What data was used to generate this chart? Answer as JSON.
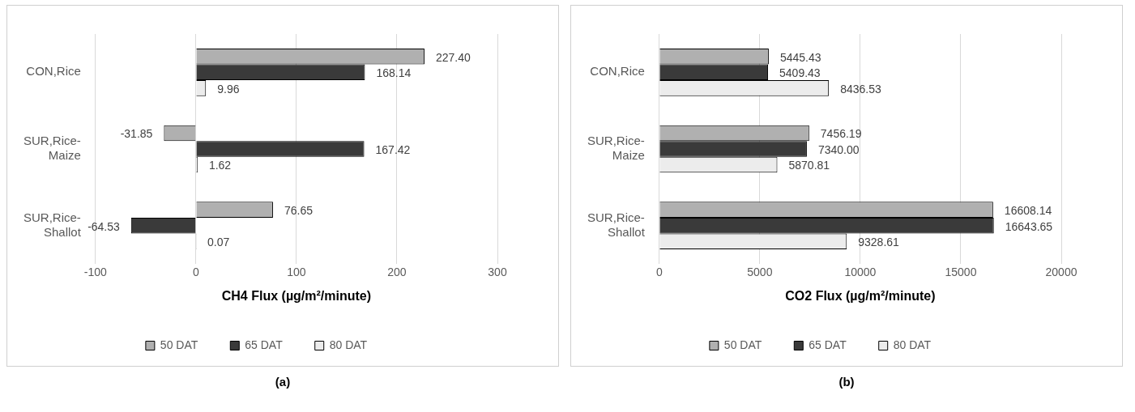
{
  "chart_data": [
    {
      "type": "bar",
      "orientation": "horizontal",
      "categories": [
        "CON,Rice",
        "SUR,Rice-Maize",
        "SUR,Rice-Shallot"
      ],
      "xlabel": "CH4 Flux (µg/m²/minute)",
      "xlim": [
        -100,
        300
      ],
      "xticks": [
        -100,
        0,
        100,
        200,
        300
      ],
      "grid": "x",
      "legend": "bottom",
      "annotations": [
        "(a)"
      ],
      "series": [
        {
          "name": "50 DAT",
          "color": "#b0b0b0",
          "values": [
            227.4,
            -31.85,
            76.65
          ],
          "value_labels": [
            "227.40",
            "-31.85",
            "76.65"
          ]
        },
        {
          "name": "65 DAT",
          "color": "#3a3a3a",
          "values": [
            168.14,
            167.42,
            -64.53
          ],
          "value_labels": [
            "168.14",
            "167.42",
            "-64.53"
          ]
        },
        {
          "name": "80 DAT",
          "color": "#ececec",
          "values": [
            9.96,
            1.62,
            0.07
          ],
          "value_labels": [
            "9.96",
            "1.62",
            "0.07"
          ]
        }
      ]
    },
    {
      "type": "bar",
      "orientation": "horizontal",
      "categories": [
        "CON,Rice",
        "SUR,Rice-Maize",
        "SUR,Rice-Shallot"
      ],
      "xlabel": "CO2 Flux (µg/m²/minute)",
      "xlim": [
        0,
        20000
      ],
      "xticks": [
        0,
        5000,
        10000,
        15000,
        20000
      ],
      "grid": "x",
      "legend": "bottom",
      "annotations": [
        "(b)"
      ],
      "series": [
        {
          "name": "50 DAT",
          "color": "#b0b0b0",
          "values": [
            5445.43,
            7456.19,
            16608.14
          ],
          "value_labels": [
            "5445.43",
            "7456.19",
            "16608.14"
          ]
        },
        {
          "name": "65 DAT",
          "color": "#3a3a3a",
          "values": [
            5409.43,
            7340.0,
            16643.65
          ],
          "value_labels": [
            "5409.43",
            "7340.00",
            "16643.65"
          ]
        },
        {
          "name": "80 DAT",
          "color": "#ececec",
          "values": [
            8436.53,
            5870.81,
            9328.61
          ],
          "value_labels": [
            "8436.53",
            "5870.81",
            "9328.61"
          ]
        }
      ]
    }
  ]
}
